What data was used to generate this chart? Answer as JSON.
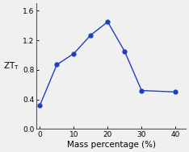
{
  "x": [
    0,
    5,
    10,
    15,
    20,
    25,
    30,
    40
  ],
  "y": [
    0.32,
    0.87,
    1.02,
    1.27,
    1.45,
    1.05,
    0.52,
    0.5
  ],
  "line_color": "#1f3fbf",
  "marker": "o",
  "marker_size": 3.5,
  "xlabel": "Mass percentage (%)",
  "ylabel": "ZT$_\\mathrm{T}$",
  "xlim": [
    -1,
    43
  ],
  "ylim": [
    0.0,
    1.7
  ],
  "yticks": [
    0.0,
    0.4,
    0.8,
    1.2,
    1.6
  ],
  "xticks": [
    0,
    10,
    20,
    30,
    40
  ],
  "figsize": [
    2.34,
    1.89
  ],
  "dpi": 100,
  "tick_fontsize": 6.5,
  "label_fontsize": 7.5
}
